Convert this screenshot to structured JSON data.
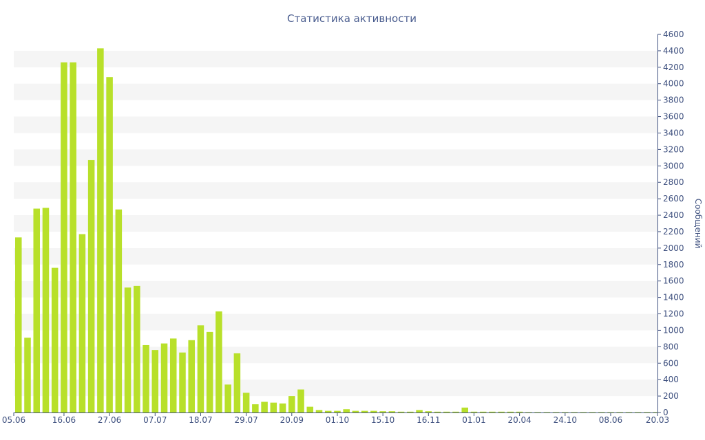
{
  "chart_data": {
    "type": "bar",
    "title": "Статистика активности",
    "ylabel": "Сообщений",
    "xlabel": "",
    "ylim": [
      0,
      4600
    ],
    "y_ticks": [
      0,
      200,
      400,
      600,
      800,
      1000,
      1200,
      1400,
      1600,
      1800,
      2000,
      2200,
      2400,
      2600,
      2800,
      3000,
      3200,
      3400,
      3600,
      3800,
      4000,
      4200,
      4400,
      4600
    ],
    "x_tick_labels": [
      "05.06",
      "16.06",
      "27.06",
      "07.07",
      "18.07",
      "29.07",
      "20.09",
      "01.10",
      "15.10",
      "16.11",
      "01.01",
      "20.04",
      "24.10",
      "08.06",
      "20.03"
    ],
    "x_tick_bar_index": [
      0,
      5,
      10,
      15,
      20,
      25,
      30,
      35,
      40,
      45,
      50,
      55,
      60,
      65,
      70
    ],
    "bar_color": "#b8e02a",
    "stripe_color": "#f5f5f5",
    "axis_color": "#3d4f7e",
    "title_color": "#4a5d8f",
    "values": [
      2130,
      910,
      2480,
      2490,
      1760,
      4260,
      4260,
      2170,
      3070,
      4430,
      4080,
      2470,
      1520,
      1540,
      820,
      760,
      840,
      900,
      730,
      880,
      1060,
      980,
      1230,
      340,
      720,
      240,
      100,
      130,
      120,
      110,
      200,
      280,
      70,
      30,
      20,
      20,
      40,
      20,
      20,
      20,
      15,
      15,
      10,
      10,
      30,
      15,
      10,
      10,
      10,
      60,
      10,
      10,
      10,
      10,
      10,
      10,
      5,
      5,
      5,
      5,
      5,
      5,
      5,
      5,
      5,
      5,
      5,
      5,
      5,
      5,
      5
    ]
  }
}
